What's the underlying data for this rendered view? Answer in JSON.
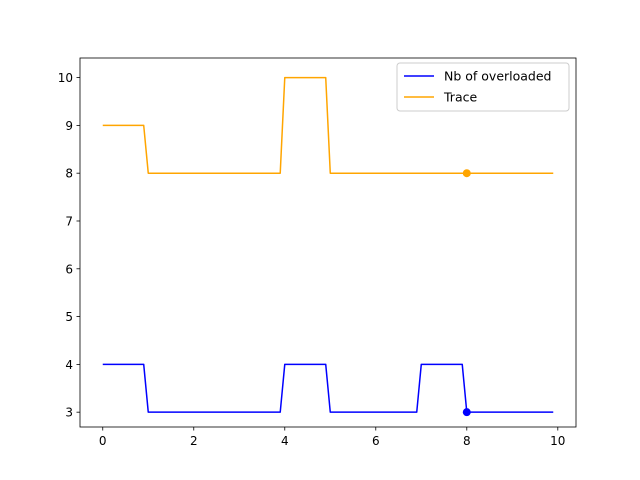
{
  "chart_data": {
    "type": "line",
    "title": "",
    "xlabel": "",
    "ylabel": "",
    "xlim": [
      -0.5,
      10.4
    ],
    "ylim": [
      2.69,
      10.41
    ],
    "xticks": [
      0,
      2,
      4,
      6,
      8,
      10
    ],
    "yticks": [
      3,
      4,
      5,
      6,
      7,
      8,
      9,
      10
    ],
    "grid": false,
    "legend_position": "top-right",
    "series": [
      {
        "name": "Nb of overloaded",
        "color": "#0000ff",
        "x": [
          0,
          0.9,
          1.0,
          3.9,
          4.0,
          4.9,
          5.0,
          6.9,
          7.0,
          7.9,
          8.0,
          9.9
        ],
        "y": [
          4,
          4,
          3,
          3,
          4,
          4,
          3,
          3,
          4,
          4,
          3,
          3
        ],
        "marker": {
          "x": 8,
          "y": 3
        }
      },
      {
        "name": "Trace",
        "color": "#ffa500",
        "x": [
          0,
          0.9,
          1.0,
          3.9,
          4.0,
          4.9,
          5.0,
          9.9
        ],
        "y": [
          9,
          9,
          8,
          8,
          10,
          10,
          8,
          8
        ],
        "marker": {
          "x": 8,
          "y": 8
        }
      }
    ]
  }
}
